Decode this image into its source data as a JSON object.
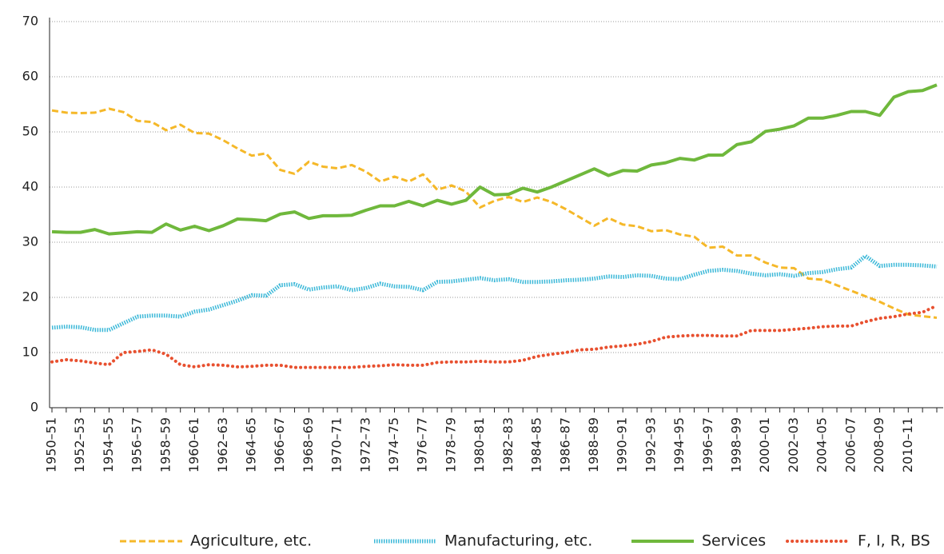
{
  "chart_data": {
    "type": "line",
    "categories": [
      "1950–51",
      null,
      "1952–53",
      null,
      "1954–55",
      null,
      "1956–57",
      null,
      "1958–59",
      null,
      "1960–61",
      null,
      "1962–63",
      null,
      "1964–65",
      null,
      "1966–67",
      null,
      "1968–69",
      null,
      "1970–71",
      null,
      "1972–73",
      null,
      "1974–75",
      null,
      "1976–77",
      null,
      "1978–79",
      null,
      "1980–81",
      null,
      "1982–83",
      null,
      "1984–85",
      null,
      "1986–87",
      null,
      "1988–89",
      null,
      "1990–91",
      null,
      "1992–93",
      null,
      "1994–95",
      null,
      "1996–97",
      null,
      "1998–99",
      null,
      "2000–01",
      null,
      "2002–03",
      null,
      "2004–05",
      null,
      "2006–07",
      null,
      "2008–09",
      null,
      "2010–11",
      null,
      null
    ],
    "series": [
      {
        "name": "Agriculture, etc.",
        "color": "#f5b829",
        "style": "dashed",
        "values": [
          53.9,
          53.5,
          53.4,
          53.5,
          54.2,
          53.6,
          52,
          51.8,
          50.3,
          51.3,
          49.8,
          49.7,
          48.5,
          47,
          45.7,
          46.1,
          43.1,
          42.4,
          44.6,
          43.7,
          43.4,
          44.0,
          42.8,
          41.0,
          41.9,
          41.0,
          42.3,
          39.5,
          40.3,
          39.2,
          36.3,
          37.5,
          38.2,
          37.3,
          38.1,
          37.3,
          36.0,
          34.5,
          33.0,
          34.4,
          33.2,
          32.9,
          32.0,
          32.2,
          31.4,
          31.0,
          29.0,
          29.2,
          27.6,
          27.6,
          26.3,
          25.4,
          25.3,
          23.4,
          23.2,
          22.2,
          21.2,
          20.2,
          19.2,
          18.0,
          16.9,
          16.6,
          16.3
        ]
      },
      {
        "name": "Manufacturing, etc.",
        "color": "#3bb8d8",
        "style": "dense",
        "values": [
          14.5,
          14.7,
          14.6,
          14.1,
          14.1,
          15.3,
          16.5,
          16.7,
          16.7,
          16.5,
          17.4,
          17.8,
          18.6,
          19.4,
          20.4,
          20.3,
          22.2,
          22.4,
          21.4,
          21.8,
          22.0,
          21.3,
          21.7,
          22.5,
          22.0,
          21.9,
          21.3,
          22.8,
          22.9,
          23.2,
          23.5,
          23.1,
          23.3,
          22.8,
          22.8,
          22.9,
          23.1,
          23.2,
          23.4,
          23.8,
          23.7,
          24.0,
          23.9,
          23.4,
          23.3,
          24.1,
          24.8,
          25.0,
          24.8,
          24.3,
          24.0,
          24.2,
          23.9,
          24.4,
          24.6,
          25.1,
          25.4,
          27.5,
          25.7,
          25.9,
          25.9,
          25.8,
          25.6
        ]
      },
      {
        "name": "Services",
        "color": "#6fb83c",
        "style": "solid",
        "values": [
          31.9,
          31.8,
          31.8,
          32.3,
          31.5,
          31.7,
          31.9,
          31.8,
          33.3,
          32.2,
          32.9,
          32.1,
          33.0,
          34.2,
          34.1,
          33.9,
          35.1,
          35.5,
          34.3,
          34.8,
          34.8,
          34.9,
          35.8,
          36.6,
          36.6,
          37.4,
          36.6,
          37.6,
          36.9,
          37.6,
          40.0,
          38.6,
          38.7,
          39.8,
          39.1,
          40.0,
          41.1,
          42.2,
          43.3,
          42.1,
          43.0,
          42.9,
          44.0,
          44.4,
          45.2,
          44.9,
          45.8,
          45.8,
          47.7,
          48.2,
          50.1,
          50.5,
          51.1,
          52.5,
          52.5,
          53.0,
          53.7,
          53.7,
          53.0,
          56.3,
          57.3,
          57.5,
          58.5
        ]
      },
      {
        "name": "F, I, R, BS",
        "color": "#e8502f",
        "style": "dotted",
        "values": [
          8.3,
          8.7,
          8.5,
          8.1,
          7.8,
          10.0,
          10.2,
          10.5,
          9.7,
          7.8,
          7.4,
          7.8,
          7.7,
          7.4,
          7.5,
          7.7,
          7.7,
          7.3,
          7.3,
          7.3,
          7.3,
          7.3,
          7.5,
          7.6,
          7.8,
          7.7,
          7.7,
          8.2,
          8.3,
          8.3,
          8.4,
          8.3,
          8.3,
          8.6,
          9.3,
          9.7,
          10.0,
          10.5,
          10.6,
          11.0,
          11.2,
          11.5,
          12.0,
          12.8,
          13.0,
          13.1,
          13.1,
          13.0,
          13.0,
          14.0,
          14.0,
          14.0,
          14.2,
          14.4,
          14.7,
          14.8,
          14.8,
          15.6,
          16.2,
          16.5,
          17.0,
          17.3,
          18.5
        ]
      }
    ],
    "ylim": [
      0,
      70
    ],
    "yticks": [
      0,
      10,
      20,
      30,
      40,
      50,
      60,
      70
    ],
    "grid": true
  }
}
